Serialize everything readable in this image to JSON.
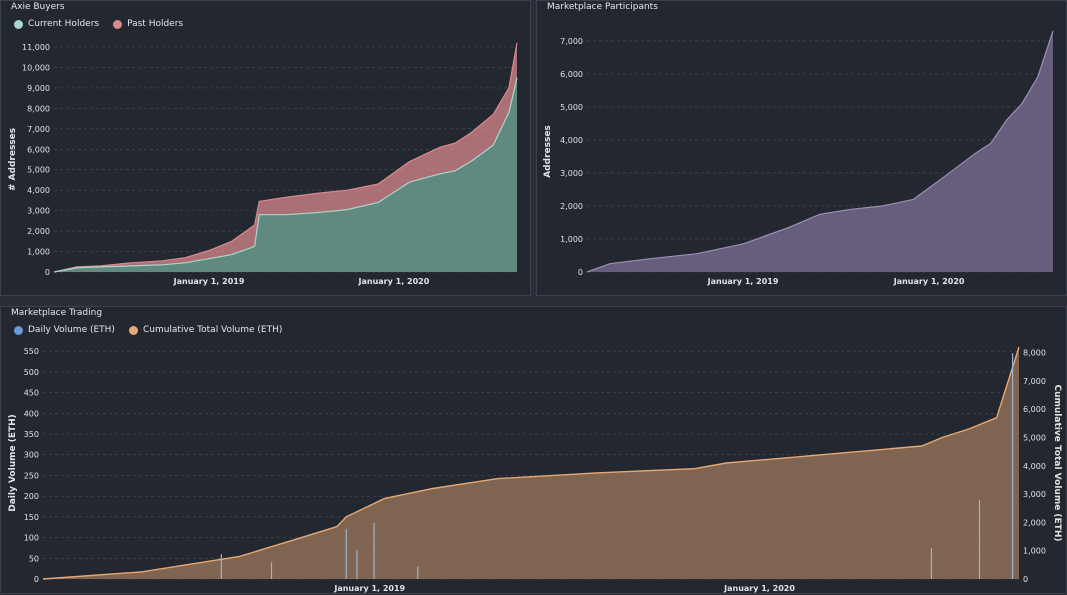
{
  "panels": {
    "axie_buyers": {
      "title": "Axie Buyers"
    },
    "marketplace_participants": {
      "title": "Marketplace Participants"
    },
    "marketplace_trading": {
      "title": "Marketplace Trading"
    }
  },
  "colors": {
    "current_holders": "#a9d7cc",
    "past_holders": "#d98a8f",
    "participants": "#9c8fb3",
    "daily_volume": "#6b9bd6",
    "cumulative_volume": "#e6a874",
    "grid": "#4a505c",
    "tick": "#e0e3e7"
  },
  "chart_data": [
    {
      "id": "axie_buyers",
      "type": "area",
      "title": "Axie Buyers",
      "ylabel": "# Addresses",
      "xlabel": "",
      "ylim": [
        0,
        11000
      ],
      "yticks": [
        "0",
        "1,000",
        "2,000",
        "3,000",
        "4,000",
        "5,000",
        "6,000",
        "7,000",
        "8,000",
        "9,000",
        "10,000",
        "11,000"
      ],
      "xticks": [
        {
          "x": "2019-01-01",
          "label": "January 1, 2019"
        },
        {
          "x": "2020-01-01",
          "label": "January 1, 2020"
        }
      ],
      "x_range": [
        "2018-03-01",
        "2020-08-31"
      ],
      "legend": "top-left",
      "grid": true,
      "x": [
        "2018-03-01",
        "2018-04-15",
        "2018-06-01",
        "2018-08-01",
        "2018-10-01",
        "2018-11-15",
        "2019-01-01",
        "2019-02-15",
        "2019-04-01",
        "2019-04-10",
        "2019-06-01",
        "2019-08-01",
        "2019-10-01",
        "2019-12-01",
        "2020-02-01",
        "2020-04-01",
        "2020-05-01",
        "2020-06-01",
        "2020-07-15",
        "2020-08-15",
        "2020-08-31"
      ],
      "series": [
        {
          "name": "Current Holders",
          "values": [
            0,
            200,
            250,
            300,
            350,
            450,
            650,
            850,
            1250,
            2800,
            2800,
            2900,
            3050,
            3400,
            4400,
            4800,
            4950,
            5400,
            6200,
            7800,
            9500
          ]
        },
        {
          "name": "Past Holders",
          "values": [
            0,
            250,
            300,
            450,
            550,
            700,
            1050,
            1500,
            2300,
            3450,
            3650,
            3850,
            4000,
            4300,
            5400,
            6100,
            6300,
            6800,
            7700,
            9000,
            11200
          ]
        }
      ]
    },
    {
      "id": "marketplace_participants",
      "type": "area",
      "title": "Marketplace Participants",
      "ylabel": "Addresses",
      "xlabel": "",
      "ylim": [
        0,
        7300
      ],
      "yticks": [
        "0",
        "1,000",
        "2,000",
        "3,000",
        "4,000",
        "5,000",
        "6,000",
        "7,000"
      ],
      "xticks": [
        {
          "x": "2019-01-01",
          "label": "January 1, 2019"
        },
        {
          "x": "2020-01-01",
          "label": "January 1, 2020"
        }
      ],
      "x_range": [
        "2018-03-01",
        "2020-08-31"
      ],
      "grid": true,
      "x": [
        "2018-03-01",
        "2018-04-15",
        "2018-07-01",
        "2018-10-01",
        "2019-01-01",
        "2019-04-01",
        "2019-06-01",
        "2019-08-01",
        "2019-10-01",
        "2019-12-01",
        "2020-02-01",
        "2020-04-01",
        "2020-05-01",
        "2020-06-01",
        "2020-07-01",
        "2020-08-01",
        "2020-08-31"
      ],
      "series": [
        {
          "name": "Addresses",
          "values": [
            0,
            250,
            400,
            550,
            850,
            1350,
            1750,
            1900,
            2000,
            2200,
            2900,
            3600,
            3900,
            4600,
            5100,
            5900,
            7300
          ]
        }
      ]
    },
    {
      "id": "marketplace_trading",
      "type": "area",
      "title": "Marketplace Trading",
      "ylabel": "Daily Volume (ETH)",
      "y2label": "Cumulative Total Volume (ETH)",
      "xlabel": "",
      "ylim": [
        0,
        560
      ],
      "y2lim": [
        0,
        8200
      ],
      "yticks": [
        "0",
        "50",
        "100",
        "150",
        "200",
        "250",
        "300",
        "350",
        "400",
        "450",
        "500",
        "550"
      ],
      "y2ticks": [
        "0",
        "1,000",
        "2,000",
        "3,000",
        "4,000",
        "5,000",
        "6,000",
        "7,000",
        "8,000"
      ],
      "xticks": [
        {
          "x": "2019-01-01",
          "label": "January 1, 2019"
        },
        {
          "x": "2020-01-01",
          "label": "January 1, 2020"
        }
      ],
      "x_range": [
        "2018-03-01",
        "2020-08-31"
      ],
      "legend": "top-left",
      "grid": true,
      "cumulative": {
        "name": "Cumulative Total Volume (ETH)",
        "x": [
          "2018-03-01",
          "2018-06-01",
          "2018-09-01",
          "2018-11-01",
          "2018-12-01",
          "2018-12-10",
          "2019-01-15",
          "2019-03-01",
          "2019-05-01",
          "2019-08-01",
          "2019-11-01",
          "2019-12-01",
          "2020-02-01",
          "2020-04-01",
          "2020-06-01",
          "2020-06-20",
          "2020-07-15",
          "2020-08-10",
          "2020-08-31"
        ],
        "values": [
          0,
          250,
          800,
          1500,
          1850,
          2200,
          2850,
          3200,
          3550,
          3750,
          3900,
          4100,
          4300,
          4500,
          4700,
          5000,
          5300,
          5700,
          8200
        ]
      },
      "daily": {
        "name": "Daily Volume (ETH)",
        "spikes": [
          {
            "x": "2018-08-15",
            "value": 60
          },
          {
            "x": "2018-10-01",
            "value": 40
          },
          {
            "x": "2018-12-10",
            "value": 120
          },
          {
            "x": "2018-12-20",
            "value": 70
          },
          {
            "x": "2019-01-05",
            "value": 135
          },
          {
            "x": "2019-02-15",
            "value": 30
          },
          {
            "x": "2020-06-10",
            "value": 75
          },
          {
            "x": "2020-07-25",
            "value": 190
          },
          {
            "x": "2020-08-25",
            "value": 545
          }
        ]
      }
    }
  ]
}
